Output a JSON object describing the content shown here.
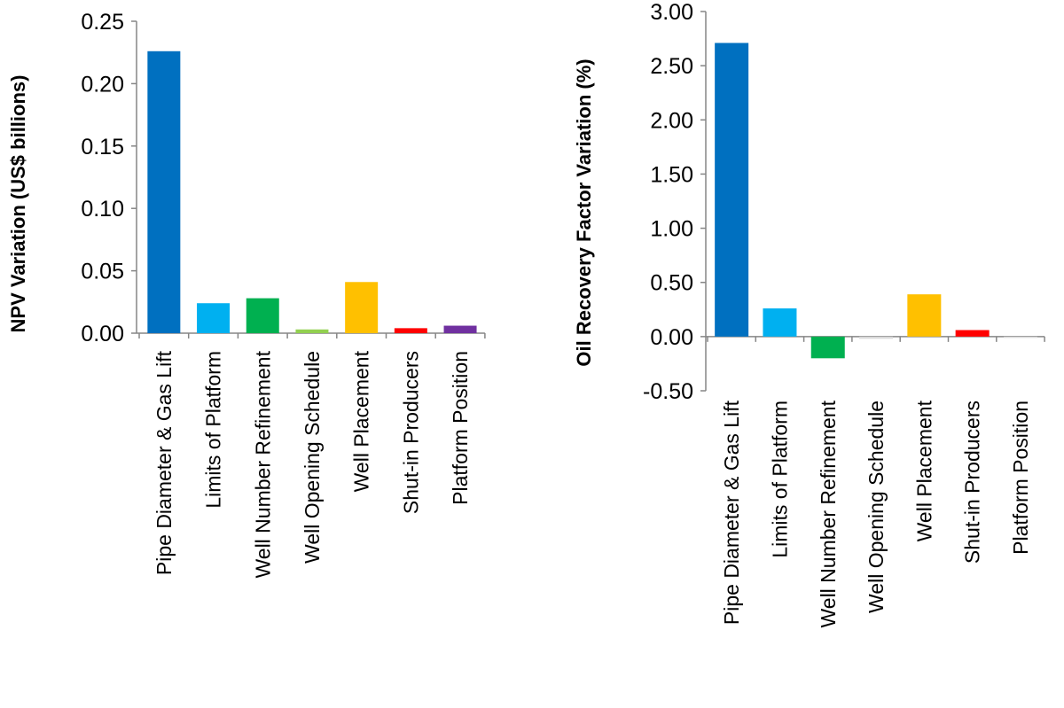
{
  "chart_data": [
    {
      "type": "bar",
      "title": "",
      "xlabel": "",
      "ylabel": "NPV Variation  (US$ billions)",
      "categories": [
        "Pipe Diameter & Gas Lift",
        "Limits of Platform",
        "Well Number Refinement",
        "Well Opening Schedule",
        "Well Placement",
        "Shut-in Producers",
        "Platform Position"
      ],
      "values": [
        0.226,
        0.024,
        0.028,
        0.003,
        0.041,
        0.004,
        0.006
      ],
      "colors": [
        "#0070C0",
        "#00B0F0",
        "#00B050",
        "#92D050",
        "#FFC000",
        "#FF0000",
        "#7030A0"
      ],
      "yticks": [
        "0.00",
        "0.05",
        "0.10",
        "0.15",
        "0.20",
        "0.25"
      ],
      "ylim": [
        0,
        0.25
      ],
      "grid": false,
      "legend": "none"
    },
    {
      "type": "bar",
      "title": "",
      "xlabel": "",
      "ylabel": "Oil Recovery Factor Variation (%)",
      "categories": [
        "Pipe Diameter & Gas Lift",
        "Limits of Platform",
        "Well Number Refinement",
        "Well Opening Schedule",
        "Well Placement",
        "Shut-in Producers",
        "Platform Position"
      ],
      "values": [
        2.71,
        0.26,
        -0.2,
        -0.02,
        0.39,
        0.06,
        -0.01
      ],
      "colors": [
        "#0070C0",
        "#00B0F0",
        "#00B050",
        "#D9D9D9",
        "#FFC000",
        "#FF0000",
        "#D9D9D9"
      ],
      "yticks": [
        "-0.50",
        "0.00",
        "0.50",
        "1.00",
        "1.50",
        "2.00",
        "2.50",
        "3.00"
      ],
      "ylim": [
        -0.5,
        3.0
      ],
      "grid": false,
      "legend": "none"
    }
  ]
}
